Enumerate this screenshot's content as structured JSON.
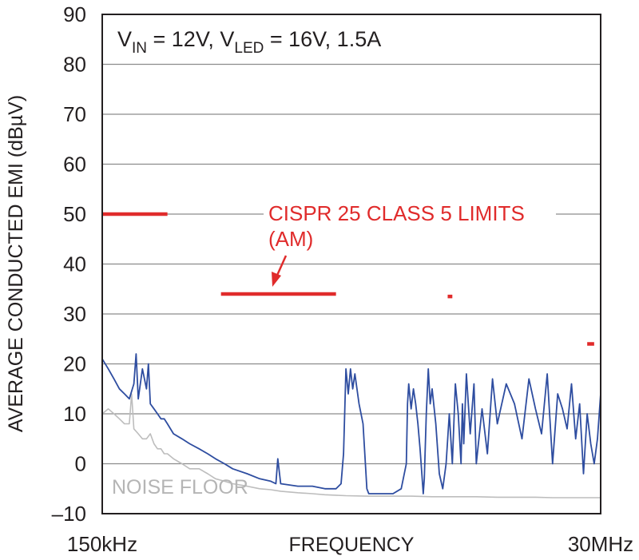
{
  "chart_data": {
    "type": "line",
    "ylabel": "AVERAGE CONDUCTED EMI (dBµV)",
    "xlabel": "FREQUENCY",
    "x_scale": "log",
    "x_tick_labels": [
      "150kHz",
      "30MHz"
    ],
    "xlim_mhz": [
      0.15,
      30
    ],
    "ylim": [
      -10,
      90
    ],
    "y_ticks": [
      90,
      80,
      70,
      60,
      50,
      40,
      30,
      20,
      10,
      0,
      -10
    ],
    "y_tick_labels": [
      "90",
      "80",
      "70",
      "60",
      "50",
      "40",
      "30",
      "20",
      "10",
      "0",
      "–10"
    ],
    "grid": true,
    "conditions": {
      "a": "V",
      "a_sub": "IN",
      "b": " = 12V, V",
      "b_sub": "LED",
      "c": " = 16V, 1.5A"
    },
    "limits_annotation": [
      "CISPR 25 CLASS 5 LIMITS",
      "(AM)"
    ],
    "noise_label": "NOISE FLOOR",
    "colors": {
      "emi": "#2e4da0",
      "noise": "#bdbdbd",
      "limit": "#e02b2b",
      "grid": "#8c8c8c",
      "frame": "#231f20"
    },
    "limits": [
      {
        "f_start_mhz": 0.15,
        "f_end_mhz": 0.3,
        "value": 50
      },
      {
        "f_start_mhz": 0.53,
        "f_end_mhz": 1.8,
        "value": 34
      },
      {
        "f_start_mhz": 5.9,
        "f_end_mhz": 6.2,
        "value": 33.5
      },
      {
        "f_start_mhz": 26,
        "f_end_mhz": 28,
        "value": 24
      }
    ],
    "series": [
      {
        "key": "emi",
        "x_mhz": [
          0.15,
          0.16,
          0.17,
          0.18,
          0.19,
          0.2,
          0.21,
          0.215,
          0.22,
          0.23,
          0.24,
          0.245,
          0.25,
          0.26,
          0.27,
          0.28,
          0.29,
          0.3,
          0.32,
          0.35,
          0.38,
          0.42,
          0.46,
          0.5,
          0.55,
          0.6,
          0.7,
          0.8,
          0.9,
          0.95,
          0.97,
          1.0,
          1.2,
          1.4,
          1.6,
          1.8,
          1.9,
          1.95,
          2.0,
          2.05,
          2.1,
          2.15,
          2.2,
          2.3,
          2.4,
          2.5,
          2.55,
          2.6,
          2.8,
          3.0,
          3.3,
          3.6,
          3.8,
          3.85,
          3.9,
          4.0,
          4.1,
          4.2,
          4.3,
          4.4,
          4.55,
          4.6,
          4.7,
          4.8,
          4.9,
          5.0,
          5.2,
          5.4,
          5.6,
          5.8,
          6.0,
          6.2,
          6.4,
          6.6,
          6.8,
          6.9,
          7.0,
          7.2,
          7.5,
          7.8,
          8.0,
          8.5,
          9.0,
          9.5,
          10,
          11,
          12,
          13,
          14,
          15,
          16,
          17,
          18,
          19,
          20,
          21,
          22,
          23,
          24,
          25,
          26,
          27,
          28,
          29,
          30
        ],
        "y": [
          21,
          19,
          17,
          15,
          14,
          13,
          16,
          22,
          13,
          19,
          15,
          20,
          12,
          11,
          10,
          9,
          9,
          8,
          6,
          5,
          4,
          3,
          2,
          1,
          0,
          -1,
          -2,
          -3,
          -3.5,
          -4,
          1,
          -4,
          -4.5,
          -4.5,
          -5,
          -5,
          -4,
          2,
          19,
          14,
          19,
          15,
          18,
          12,
          8,
          -5,
          -6,
          -6,
          -6,
          -6,
          -6,
          -5,
          0,
          12,
          16,
          11,
          15,
          12,
          8,
          3,
          -6,
          -3,
          10,
          19,
          12,
          15,
          8,
          -2,
          -5,
          0,
          10,
          0,
          16,
          10,
          0,
          12,
          4,
          18,
          6,
          16,
          0,
          11,
          2,
          17,
          8,
          16,
          12,
          5,
          17,
          11,
          6,
          18,
          0,
          14,
          11,
          7,
          16,
          5,
          12,
          -2,
          10,
          4,
          0,
          5,
          14
        ]
      },
      {
        "key": "noise",
        "x_mhz": [
          0.15,
          0.16,
          0.17,
          0.18,
          0.19,
          0.2,
          0.205,
          0.21,
          0.22,
          0.23,
          0.24,
          0.25,
          0.26,
          0.27,
          0.28,
          0.29,
          0.3,
          0.32,
          0.35,
          0.38,
          0.42,
          0.46,
          0.5,
          0.55,
          0.6,
          0.7,
          0.8,
          0.9,
          1.0,
          1.2,
          1.4,
          1.6,
          1.8,
          2.0,
          2.5,
          3.0,
          4.0,
          5.0,
          6.0,
          8.0,
          10,
          12,
          15,
          18,
          21,
          24,
          27,
          30
        ],
        "y": [
          10,
          11,
          10,
          9,
          8,
          8,
          14,
          7,
          6,
          5,
          5,
          6,
          4,
          3,
          3,
          2,
          2,
          1,
          0,
          -1,
          -1,
          -2,
          -3,
          -3.5,
          -4,
          -4.5,
          -5,
          -5.2,
          -5.5,
          -5.8,
          -6,
          -6.2,
          -6.3,
          -6.4,
          -6.5,
          -6.5,
          -6.5,
          -6.6,
          -6.6,
          -6.6,
          -6.7,
          -6.7,
          -6.7,
          -6.8,
          -6.8,
          -6.8,
          -6.8,
          -6.8
        ]
      }
    ]
  }
}
